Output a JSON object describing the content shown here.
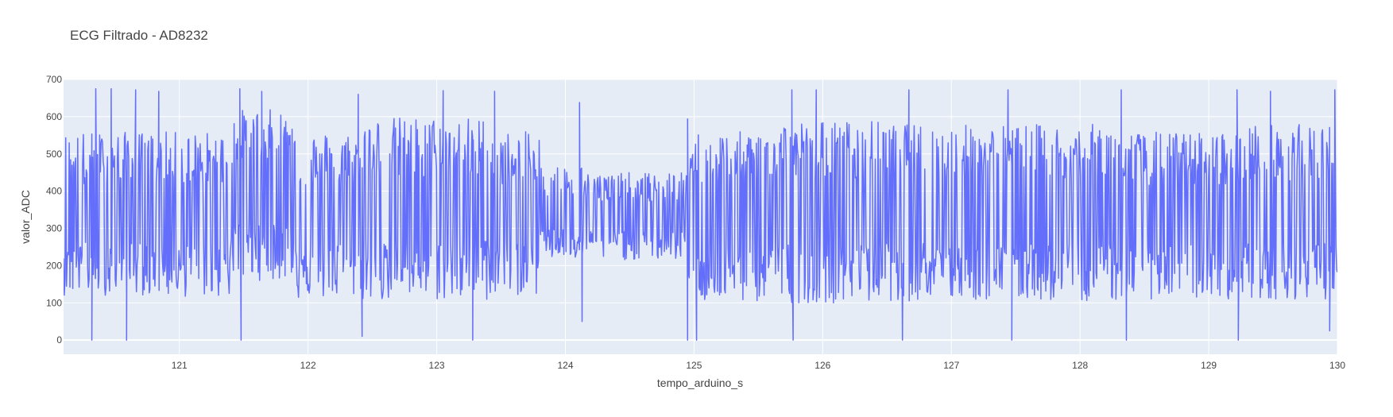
{
  "chart_data": {
    "type": "line",
    "title": "ECG Filtrado - AD8232",
    "xlabel": "tempo_arduino_s",
    "ylabel": "valor_ADC",
    "xlim": [
      120.1,
      130.0
    ],
    "ylim": [
      -38,
      700
    ],
    "xticks": [
      121,
      122,
      123,
      124,
      125,
      126,
      127,
      128,
      129,
      130
    ],
    "yticks": [
      0,
      100,
      200,
      300,
      400,
      500,
      600,
      700
    ],
    "grid": true,
    "legend": "none",
    "colors": {
      "series": "#636efa",
      "plot_bg": "#e5ecf6",
      "grid": "#ffffff",
      "text": "#444444"
    },
    "series": [
      {
        "sample_step_s": 0.0055,
        "segments": [
          {
            "x_start": 120.1,
            "x_end": 120.9,
            "low": 120,
            "high": 560
          },
          {
            "x_start": 120.9,
            "x_end": 121.4,
            "low": 115,
            "high": 560
          },
          {
            "x_start": 121.4,
            "x_end": 121.9,
            "low": 160,
            "high": 620
          },
          {
            "x_start": 121.9,
            "x_end": 122.4,
            "low": 110,
            "high": 560
          },
          {
            "x_start": 122.4,
            "x_end": 123.4,
            "low": 105,
            "high": 600
          },
          {
            "x_start": 123.4,
            "x_end": 123.8,
            "low": 120,
            "high": 560
          },
          {
            "x_start": 123.8,
            "x_end": 124.15,
            "low": 215,
            "high": 470
          },
          {
            "x_start": 124.15,
            "x_end": 124.95,
            "low": 215,
            "high": 450
          },
          {
            "x_start": 124.95,
            "x_end": 125.5,
            "low": 100,
            "high": 560
          },
          {
            "x_start": 125.5,
            "x_end": 126.5,
            "low": 100,
            "high": 590
          },
          {
            "x_start": 126.5,
            "x_end": 128.3,
            "low": 105,
            "high": 580
          },
          {
            "x_start": 128.3,
            "x_end": 129.3,
            "low": 110,
            "high": 560
          },
          {
            "x_start": 129.3,
            "x_end": 130.0,
            "low": 110,
            "high": 580
          }
        ],
        "spikes": [
          {
            "x": 120.32,
            "y": 0
          },
          {
            "x": 120.35,
            "y": 675
          },
          {
            "x": 120.47,
            "y": 675
          },
          {
            "x": 120.59,
            "y": 0
          },
          {
            "x": 120.66,
            "y": 672
          },
          {
            "x": 120.84,
            "y": 668
          },
          {
            "x": 121.48,
            "y": 0
          },
          {
            "x": 121.47,
            "y": 675
          },
          {
            "x": 121.64,
            "y": 668
          },
          {
            "x": 122.42,
            "y": 10
          },
          {
            "x": 122.39,
            "y": 660
          },
          {
            "x": 123.05,
            "y": 670
          },
          {
            "x": 123.28,
            "y": 0
          },
          {
            "x": 123.45,
            "y": 668
          },
          {
            "x": 124.13,
            "y": 50
          },
          {
            "x": 124.11,
            "y": 638
          },
          {
            "x": 124.95,
            "y": 0
          },
          {
            "x": 125.02,
            "y": 0
          },
          {
            "x": 124.95,
            "y": 594
          },
          {
            "x": 125.77,
            "y": 0
          },
          {
            "x": 125.76,
            "y": 672
          },
          {
            "x": 125.95,
            "y": 672
          },
          {
            "x": 126.62,
            "y": 0
          },
          {
            "x": 126.67,
            "y": 672
          },
          {
            "x": 127.47,
            "y": 0
          },
          {
            "x": 127.44,
            "y": 672
          },
          {
            "x": 128.36,
            "y": 0
          },
          {
            "x": 128.32,
            "y": 672
          },
          {
            "x": 129.23,
            "y": 0
          },
          {
            "x": 129.22,
            "y": 672
          },
          {
            "x": 129.48,
            "y": 668
          },
          {
            "x": 129.94,
            "y": 25
          },
          {
            "x": 129.98,
            "y": 672
          }
        ]
      }
    ]
  }
}
